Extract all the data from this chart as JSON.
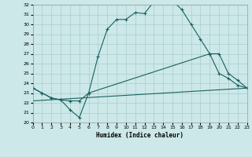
{
  "xlabel": "Humidex (Indice chaleur)",
  "bg_color": "#cce8e8",
  "grid_color": "#aacccc",
  "line_color": "#1a6060",
  "xlim": [
    0,
    23
  ],
  "ylim": [
    20,
    32
  ],
  "xticks": [
    0,
    1,
    2,
    3,
    4,
    5,
    6,
    7,
    8,
    9,
    10,
    11,
    12,
    13,
    14,
    15,
    16,
    17,
    18,
    19,
    20,
    21,
    22,
    23
  ],
  "yticks": [
    20,
    21,
    22,
    23,
    24,
    25,
    26,
    27,
    28,
    29,
    30,
    31,
    32
  ],
  "curve1_x": [
    0,
    1,
    2,
    3,
    4,
    5,
    6,
    7,
    8,
    9,
    10,
    11,
    12,
    13,
    14,
    15,
    16,
    17,
    18,
    19,
    20,
    21,
    22,
    23
  ],
  "curve1_y": [
    23.5,
    23.0,
    22.5,
    22.3,
    22.2,
    22.2,
    23.0,
    26.7,
    29.5,
    30.5,
    30.5,
    31.2,
    31.1,
    32.3,
    32.4,
    32.4,
    31.5,
    30.0,
    28.5,
    27.0,
    25.0,
    24.5,
    23.8,
    23.5
  ],
  "curve2_x": [
    0,
    1,
    2,
    3,
    4,
    5,
    6,
    19,
    20,
    21,
    22,
    23
  ],
  "curve2_y": [
    23.5,
    23.0,
    22.5,
    22.3,
    21.3,
    20.5,
    23.0,
    27.0,
    27.0,
    25.0,
    24.3,
    23.5
  ],
  "curve3_x": [
    0,
    23
  ],
  "curve3_y": [
    22.2,
    23.5
  ]
}
